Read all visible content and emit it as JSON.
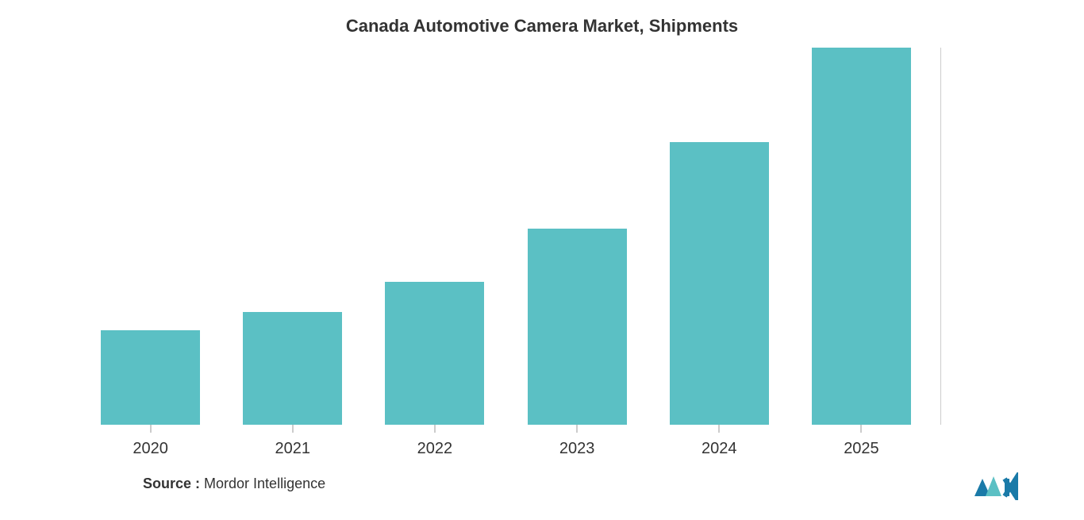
{
  "chart": {
    "type": "bar",
    "title": "Canada Automotive Camera Market, Shipments",
    "title_fontsize": 22,
    "title_color": "#333333",
    "categories": [
      "2020",
      "2021",
      "2022",
      "2023",
      "2024",
      "2025"
    ],
    "values": [
      25,
      30,
      38,
      52,
      75,
      100
    ],
    "y_max": 100,
    "bar_color": "#5bc0c4",
    "background_color": "#ffffff",
    "label_fontsize": 20,
    "label_color": "#333333",
    "bar_width_pct": 70,
    "tick_color": "#999999",
    "right_border_color": "#cccccc"
  },
  "source": {
    "label": "Source :",
    "text": " Mordor Intelligence",
    "fontsize": 18,
    "color": "#333333"
  },
  "logo": {
    "name": "mordor-intelligence-logo",
    "primary_color": "#1a7aa8",
    "accent_color": "#5bc0c4"
  }
}
